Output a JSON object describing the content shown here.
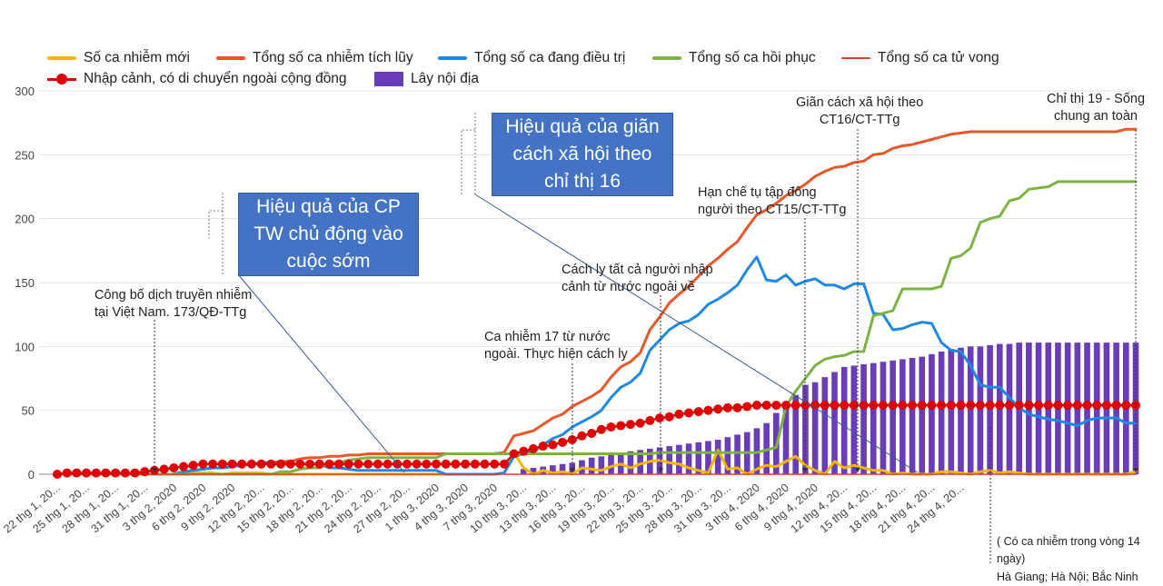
{
  "chart_data": {
    "type": "line",
    "ylim": [
      0,
      300
    ],
    "y_ticks": [
      "0",
      "50",
      "100",
      "150",
      "200",
      "250",
      "300"
    ],
    "x_tick_labels": [
      "22 thg 1, 20...",
      "25 thg 1, 20...",
      "28 thg 1, 20...",
      "31 thg 1, 20...",
      "3 thg 2, 2020",
      "6 thg 2, 2020",
      "9 thg 2, 2020",
      "12 thg 2, 20...",
      "15 thg 2, 20...",
      "18 thg 2, 20...",
      "21 thg 2, 20...",
      "24 thg 2, 20...",
      "27 thg 2, 20...",
      "1 thg 3, 2020",
      "4 thg 3, 2020",
      "7 thg 3, 2020",
      "10 thg 3, 20...",
      "13 thg 3, 20...",
      "16 thg 3, 20...",
      "19 thg 3, 20...",
      "22 thg 3, 20...",
      "25 thg 3, 20...",
      "28 thg 3, 20...",
      "31 thg 3, 20...",
      "3 thg 4, 2020",
      "6 thg 4, 2020",
      "9 thg 4, 2020",
      "12 thg 4, 20...",
      "15 thg 4, 20...",
      "18 thg 4, 20...",
      "21 thg 4, 20...",
      "24 thg 4, 20..."
    ],
    "grid": true,
    "legend_position": "top",
    "series": [
      {
        "name": "Số ca nhiễm mới",
        "kind": "line",
        "color": "#f5b400",
        "values": [
          0,
          0,
          0,
          0,
          0,
          0,
          0,
          0,
          0,
          0,
          0,
          0,
          0,
          2,
          1,
          1,
          1,
          0,
          1,
          1,
          1,
          1,
          0,
          0,
          0,
          0,
          0,
          0,
          0,
          0,
          0,
          0,
          0,
          0,
          0,
          0,
          0,
          0,
          0,
          0,
          0,
          0,
          0,
          0,
          0,
          0,
          1,
          17,
          5,
          0,
          3,
          1,
          2,
          0,
          5,
          4,
          3,
          6,
          8,
          5,
          8,
          10,
          11,
          9,
          8,
          5,
          3,
          1,
          19,
          4,
          5,
          0,
          4,
          7,
          6,
          10,
          14,
          7,
          3,
          0,
          10,
          5,
          7,
          5,
          3,
          3,
          0,
          1,
          0,
          0,
          0,
          2,
          2,
          1,
          0,
          2,
          3,
          1,
          2,
          1,
          0,
          0,
          0,
          0,
          0,
          0,
          0,
          0,
          0,
          0,
          0,
          2
        ]
      },
      {
        "name": "Tổng số ca nhiễm tích lũy",
        "kind": "line",
        "color": "#e8562a",
        "values": [
          0,
          0,
          0,
          0,
          0,
          0,
          0,
          0,
          0,
          0,
          0,
          0,
          0,
          2,
          3,
          4,
          5,
          5,
          6,
          7,
          8,
          9,
          9,
          10,
          10,
          12,
          13,
          13,
          14,
          14,
          15,
          15,
          16,
          16,
          16,
          16,
          16,
          16,
          16,
          16,
          16,
          16,
          16,
          16,
          16,
          16,
          17,
          30,
          32,
          34,
          39,
          44,
          47,
          53,
          57,
          61,
          66,
          76,
          84,
          88,
          95,
          113,
          123,
          134,
          141,
          147,
          155,
          163,
          169,
          176,
          182,
          193,
          203,
          207,
          212,
          218,
          222,
          227,
          233,
          237,
          240,
          241,
          244,
          245,
          250,
          251,
          255,
          257,
          258,
          260,
          262,
          264,
          266,
          267,
          268,
          268,
          268,
          268,
          268,
          268,
          268,
          268,
          268,
          268,
          268,
          268,
          268,
          268,
          268,
          268,
          270,
          270
        ]
      },
      {
        "name": "Tổng số ca đang điều trị",
        "kind": "line",
        "color": "#1e88e5",
        "values": [
          0,
          0,
          0,
          0,
          0,
          0,
          0,
          0,
          0,
          0,
          0,
          0,
          0,
          2,
          3,
          4,
          5,
          5,
          6,
          7,
          8,
          9,
          9,
          8,
          8,
          8,
          8,
          8,
          5,
          5,
          4,
          3,
          3,
          3,
          3,
          3,
          3,
          3,
          3,
          3,
          0,
          0,
          0,
          0,
          0,
          0,
          1,
          14,
          16,
          18,
          23,
          28,
          31,
          37,
          41,
          45,
          50,
          60,
          68,
          72,
          79,
          97,
          105,
          113,
          118,
          120,
          125,
          133,
          137,
          142,
          148,
          160,
          170,
          152,
          151,
          156,
          148,
          151,
          153,
          148,
          148,
          145,
          149,
          149,
          126,
          125,
          113,
          114,
          117,
          119,
          118,
          103,
          97,
          96,
          85,
          70,
          68,
          68,
          60,
          52,
          47,
          45,
          43,
          42,
          40,
          38,
          42,
          44,
          44,
          44,
          40,
          40
        ]
      },
      {
        "name": "Tổng số ca hồi phục",
        "kind": "line",
        "color": "#7cb342",
        "values": [
          0,
          0,
          0,
          0,
          0,
          0,
          0,
          0,
          0,
          0,
          0,
          0,
          0,
          0,
          0,
          0,
          0,
          0,
          0,
          0,
          0,
          0,
          0,
          2,
          2,
          4,
          5,
          5,
          9,
          9,
          11,
          12,
          13,
          13,
          13,
          13,
          13,
          13,
          13,
          13,
          16,
          16,
          16,
          16,
          16,
          16,
          16,
          16,
          16,
          16,
          16,
          16,
          16,
          16,
          16,
          16,
          16,
          16,
          16,
          16,
          16,
          16,
          17,
          17,
          17,
          17,
          17,
          17,
          17,
          17,
          17,
          17,
          17,
          19,
          21,
          53,
          65,
          75,
          85,
          90,
          92,
          93,
          96,
          96,
          124,
          126,
          128,
          145,
          145,
          145,
          145,
          147,
          169,
          171,
          177,
          197,
          200,
          202,
          214,
          216,
          223,
          224,
          225,
          229,
          229,
          229,
          229,
          229,
          229,
          229,
          229,
          229
        ]
      },
      {
        "name": "Tổng số ca tử vong",
        "kind": "line",
        "color": "#e53935",
        "values": [
          0,
          0,
          0,
          0,
          0,
          0,
          0,
          0,
          0,
          0,
          0,
          0,
          0,
          0,
          0,
          0,
          0,
          0,
          0,
          0,
          0,
          0,
          0,
          0,
          0,
          0,
          0,
          0,
          0,
          0,
          0,
          0,
          0,
          0,
          0,
          0,
          0,
          0,
          0,
          0,
          0,
          0,
          0,
          0,
          0,
          0,
          0,
          0,
          0,
          0,
          0,
          0,
          0,
          0,
          0,
          0,
          0,
          0,
          0,
          0,
          0,
          0,
          0,
          0,
          0,
          0,
          0,
          0,
          0,
          0,
          0,
          0,
          0,
          0,
          0,
          0,
          0,
          0,
          0,
          0,
          0,
          0,
          0,
          0,
          0,
          0,
          0,
          0,
          0,
          0,
          0,
          0,
          0,
          0,
          0,
          0,
          0,
          0,
          0,
          0,
          0,
          0,
          0,
          0,
          0,
          0,
          0,
          0,
          0,
          0,
          0,
          0
        ]
      },
      {
        "name": "Nhập cảnh, có di chuyển ngoài cộng đồng",
        "kind": "line-marker",
        "color": "#e00000",
        "values": [
          0,
          1,
          1,
          1,
          1,
          1,
          1,
          1,
          1,
          2,
          3,
          4,
          5,
          6,
          7,
          8,
          8,
          8,
          8,
          8,
          8,
          8,
          8,
          8,
          8,
          8,
          8,
          8,
          8,
          8,
          8,
          8,
          8,
          8,
          8,
          8,
          8,
          8,
          8,
          8,
          8,
          8,
          8,
          8,
          8,
          8,
          8,
          16,
          18,
          20,
          22,
          23,
          25,
          27,
          30,
          32,
          35,
          37,
          38,
          39,
          40,
          42,
          44,
          45,
          47,
          48,
          49,
          50,
          51,
          52,
          52,
          53,
          54,
          54,
          54,
          54,
          54,
          54,
          54,
          54,
          54,
          54,
          54,
          54,
          54,
          54,
          54,
          54,
          54,
          54,
          54,
          54,
          54,
          54,
          54,
          54,
          54,
          54,
          54,
          54,
          54,
          54,
          54,
          54,
          54,
          54,
          54,
          54,
          54,
          54,
          54,
          54
        ]
      },
      {
        "name": "Lây nội địa",
        "kind": "bar",
        "color": "#6a3db8",
        "values": [
          0,
          0,
          0,
          0,
          0,
          0,
          0,
          0,
          0,
          0,
          0,
          0,
          0,
          0,
          0,
          0,
          0,
          0,
          0,
          0,
          0,
          0,
          0,
          0,
          0,
          0,
          0,
          0,
          0,
          0,
          0,
          0,
          0,
          0,
          0,
          0,
          0,
          0,
          0,
          0,
          0,
          0,
          0,
          0,
          0,
          0,
          0,
          0,
          4,
          5,
          6,
          7,
          8,
          9,
          11,
          13,
          14,
          16,
          17,
          18,
          19,
          20,
          21,
          22,
          23,
          24,
          25,
          26,
          27,
          29,
          31,
          33,
          36,
          40,
          48,
          55,
          62,
          70,
          72,
          76,
          80,
          84,
          85,
          86,
          87,
          88,
          89,
          90,
          91,
          92,
          94,
          96,
          98,
          99,
          100,
          100,
          101,
          102,
          102,
          103,
          103,
          103,
          103,
          103,
          103,
          103,
          103,
          103,
          103,
          103,
          103,
          103
        ]
      }
    ]
  },
  "legend": {
    "items": [
      {
        "label": "Số ca nhiễm mới"
      },
      {
        "label": "Tổng số ca nhiễm tích lũy"
      },
      {
        "label": "Tổng số ca đang điều trị"
      },
      {
        "label": "Tổng số ca hồi phục"
      },
      {
        "label": "Tổng số ca tử vong"
      },
      {
        "label": "Nhập cảnh, có di chuyển ngoài cộng đồng"
      },
      {
        "label": "Lây nội địa"
      }
    ]
  },
  "callouts": {
    "cp_box": {
      "line1": "Hiệu quả của CP",
      "line2": "TW chủ động vào",
      "line3": "cuộc sớm"
    },
    "ct16_box": {
      "line1": "Hiệu quả của giãn",
      "line2": "cách xã hội theo",
      "line3": "chỉ thị 16"
    }
  },
  "annotations": {
    "announce": {
      "line1": "Công bố dịch truyền nhiễm",
      "line2": "tại Việt Nam. 173/QĐ-TTg"
    },
    "case17": {
      "line1": "Ca nhiễm 17 từ nước",
      "line2": "ngoài. Thực hiện cách ly"
    },
    "quarantine": {
      "line1": "Cách ly tất cả người nhập",
      "line2": "cảnh từ nước ngoài về"
    },
    "ct15": {
      "line1": "Hạn chế tụ tập đông",
      "line2": "người theo CT15/CT-TTg"
    },
    "ct16": {
      "line1": "Giãn cách xã hội theo",
      "line2": "CT16/CT-TTg"
    },
    "ct19": {
      "line1": "Chỉ thị 19 - Sống",
      "line2": "chung an toàn"
    }
  },
  "footnote": {
    "line1": "( Có ca nhiễm trong vòng 14 ngày)",
    "line2": "Hà Giang; Hà Nội; Bắc Ninh"
  }
}
